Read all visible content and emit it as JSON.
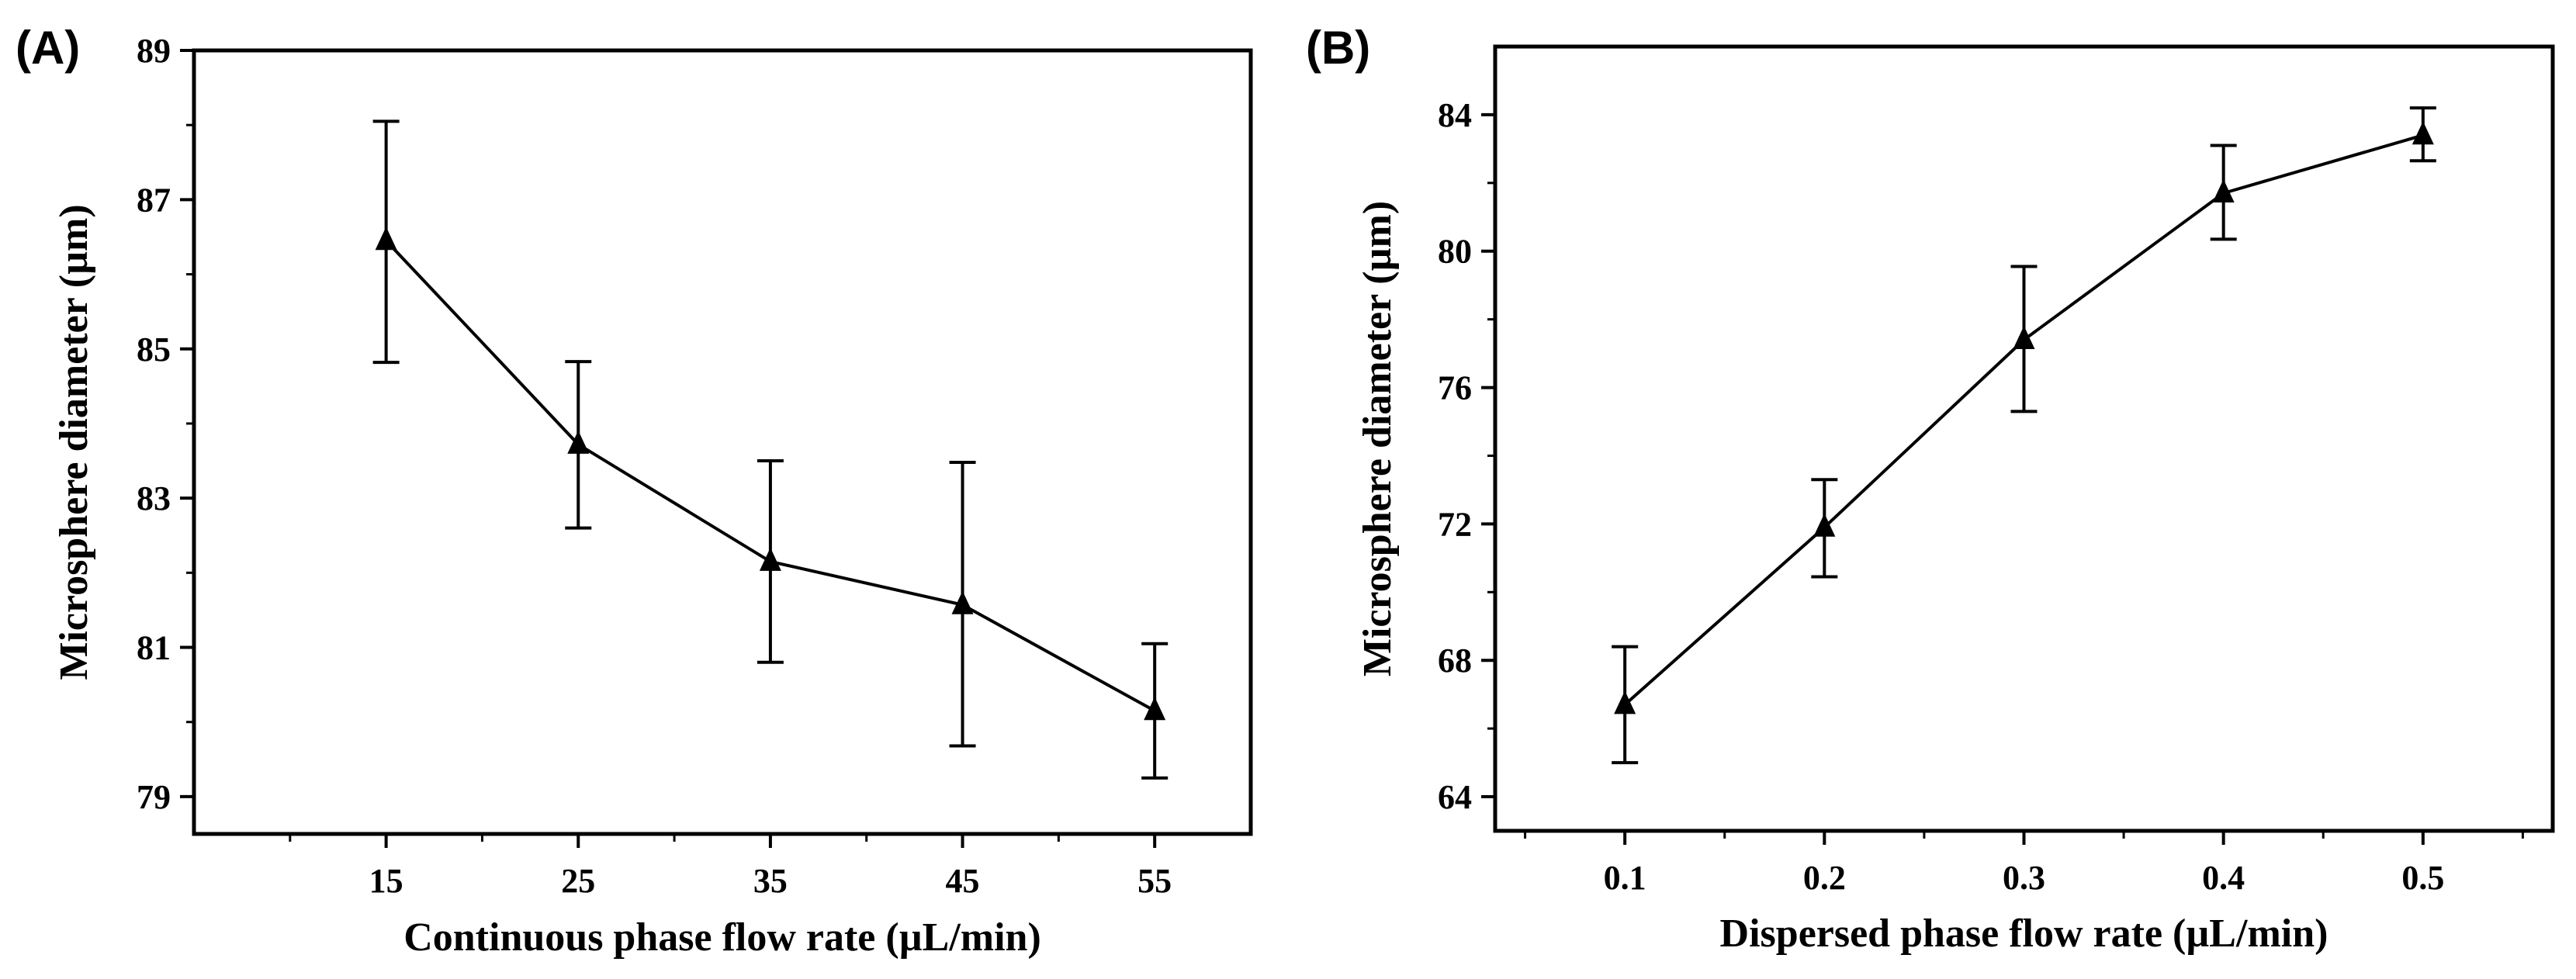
{
  "chart_data": [
    {
      "type": "line",
      "panel_label": "(A)",
      "title": "",
      "xlabel": "Continuous phase flow rate (µL/min)",
      "ylabel": "Microsphere diameter (µm)",
      "x": [
        15,
        25,
        35,
        45,
        55
      ],
      "xticks": [
        "15",
        "25",
        "35",
        "45",
        "55"
      ],
      "xlim": [
        5,
        60
      ],
      "y": [
        86.45,
        83.72,
        82.15,
        81.57,
        80.15
      ],
      "yerr_upper": [
        88.05,
        84.83,
        83.5,
        83.48,
        81.05
      ],
      "yerr_lower": [
        84.82,
        82.6,
        80.8,
        79.68,
        79.25
      ],
      "ylim": [
        78.5,
        89
      ],
      "yticks": [
        79,
        81,
        83,
        85,
        87,
        89
      ],
      "yticks_minor": [
        80,
        82,
        84,
        86,
        88
      ],
      "marker": "triangle",
      "color": "#000000",
      "grid": false
    },
    {
      "type": "line",
      "panel_label": "(B)",
      "title": "",
      "xlabel": "Dispersed phase flow rate (µL/min)",
      "ylabel": "Microsphere diameter (µm)",
      "x": [
        0.1,
        0.2,
        0.3,
        0.4,
        0.5
      ],
      "xticks": [
        "0.1",
        "0.2",
        "0.3",
        "0.4",
        "0.5"
      ],
      "xlim": [
        0.035,
        0.565
      ],
      "y": [
        66.7,
        71.9,
        77.4,
        81.7,
        83.4
      ],
      "yerr_upper": [
        68.4,
        73.3,
        79.55,
        83.1,
        84.2
      ],
      "yerr_lower": [
        65.0,
        70.45,
        75.3,
        80.35,
        82.65
      ],
      "ylim": [
        63,
        86
      ],
      "yticks": [
        64,
        68,
        72,
        76,
        80,
        84
      ],
      "yticks_minor": [
        66,
        70,
        74,
        78,
        82
      ],
      "marker": "triangle",
      "color": "#000000",
      "grid": false
    }
  ]
}
